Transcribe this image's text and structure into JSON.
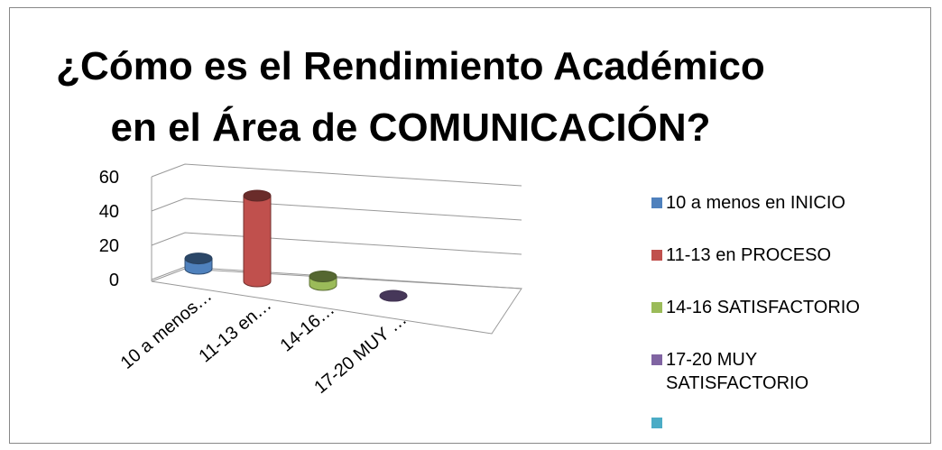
{
  "chart_data": {
    "type": "cylinder",
    "title": "¿Cómo es el Rendimiento Académico en el Área de  COMUNICACIÓN?",
    "categories": [
      "10 a menos…",
      "11-13 en…",
      "14-16…",
      "17-20 MUY …"
    ],
    "legend": [
      "10 a menos en INICIO",
      "11-13 en PROCESO",
      "14-16 SATISFACTORIO",
      "17-20 MUY SATISFACTORIO"
    ],
    "values": [
      6,
      50,
      5,
      0
    ],
    "colors": [
      "#4f81bd",
      "#c0504d",
      "#9bbb59",
      "#8064a2"
    ],
    "ylim": [
      0,
      60
    ],
    "yticks": [
      0,
      20,
      40,
      60
    ],
    "grid": true
  }
}
